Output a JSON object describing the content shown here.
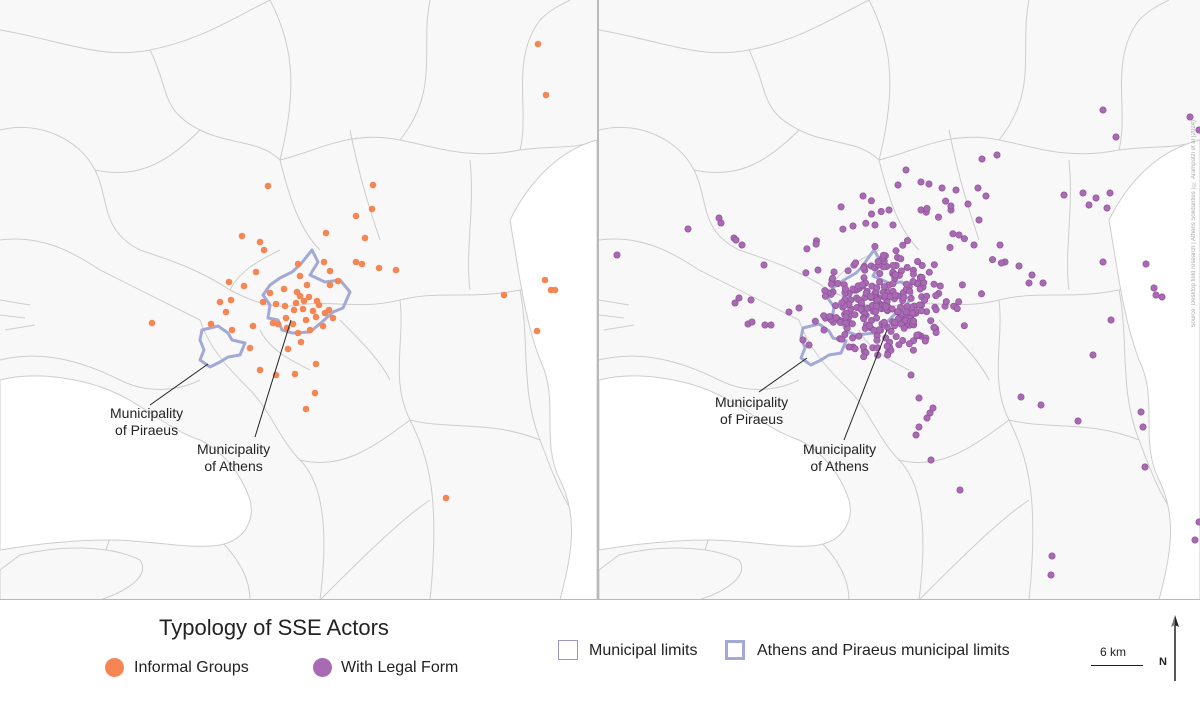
{
  "legend": {
    "title": "Typology of SSE Actors",
    "informal": {
      "label": "Informal Groups",
      "color": "#f58653"
    },
    "legal": {
      "label": "With Legal Form",
      "color": "#a86ab3"
    },
    "municipal_limits": {
      "label": "Municipal limits",
      "color": "#9a97c5"
    },
    "athens_piraeus_limits": {
      "label": "Athens and Piraeus municipal limits",
      "color": "#a3a9d6"
    }
  },
  "callouts": {
    "piraeus": {
      "line1": "Municipality",
      "line2": "of Piraeus"
    },
    "athens": {
      "line1": "Municipality",
      "line2": "of Athens"
    }
  },
  "scale": {
    "label": "6 km"
  },
  "north": {
    "label": "N"
  },
  "source": "Source: Desktop field research | Athens Solidarities | © Arampatzi et al (2024)",
  "colors": {
    "background": "#f8f8f8",
    "boundary": "#cdcdcd",
    "highlight": "#a3a9d6"
  },
  "icons": {
    "north_arrow": "north-arrow-icon"
  }
}
